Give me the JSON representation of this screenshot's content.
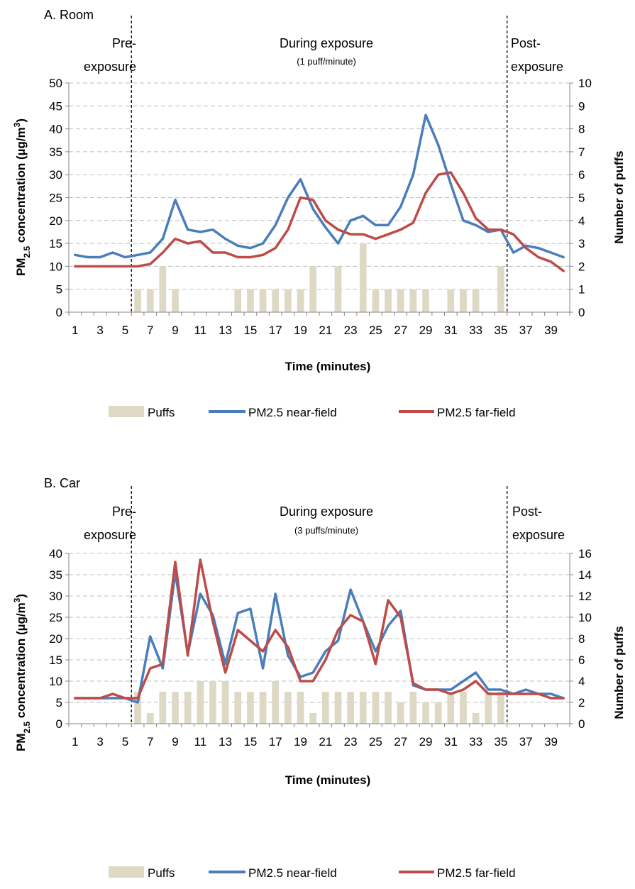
{
  "colors": {
    "puffs": "#ddd9c4",
    "near": "#4a7ebb",
    "far": "#be4b48"
  },
  "chart_data": [
    {
      "type": "bar+line",
      "title": "A. Room",
      "phases": {
        "pre": [
          "Pre-",
          "exposure"
        ],
        "during": "During exposure",
        "during_note": "(1 puff/minute)",
        "post": [
          "Post-",
          "exposure"
        ]
      },
      "xlabel": "Time (minutes)",
      "ylabel_left": {
        "main": "PM",
        "sub": "2.5",
        "mid": " concentration (µg/m",
        "sup": "3",
        "end": ")"
      },
      "ylabel_right": "Number of puffs",
      "ylim_left": [
        0,
        50
      ],
      "yticks_left": [
        0,
        5,
        10,
        15,
        20,
        25,
        30,
        35,
        40,
        45,
        50
      ],
      "ylim_right": [
        0,
        10
      ],
      "yticks_right": [
        0,
        1,
        2,
        3,
        4,
        5,
        6,
        7,
        8,
        9,
        10
      ],
      "x": [
        1,
        2,
        3,
        4,
        5,
        6,
        7,
        8,
        9,
        10,
        11,
        12,
        13,
        14,
        15,
        16,
        17,
        18,
        19,
        20,
        21,
        22,
        23,
        24,
        25,
        26,
        27,
        28,
        29,
        30,
        31,
        32,
        33,
        34,
        35,
        36,
        37,
        38,
        39,
        40
      ],
      "xtick_labels": [
        "1",
        "3",
        "5",
        "7",
        "9",
        "11",
        "13",
        "15",
        "17",
        "19",
        "21",
        "23",
        "25",
        "27",
        "29",
        "31",
        "33",
        "35",
        "37",
        "39"
      ],
      "phase_dividers_x": [
        5.5,
        35.5
      ],
      "grid": true,
      "legend_position": "bottom",
      "series": [
        {
          "name": "Puffs",
          "type": "bar",
          "axis": "right",
          "values": [
            0,
            0,
            0,
            0,
            0,
            1,
            1,
            2,
            1,
            0,
            0,
            0,
            0,
            1,
            1,
            1,
            1,
            1,
            1,
            2,
            0,
            2,
            0,
            3,
            1,
            1,
            1,
            1,
            1,
            0,
            1,
            1,
            1,
            0,
            2,
            0,
            0,
            0,
            0,
            0
          ]
        },
        {
          "name": "PM2.5 near-field",
          "type": "line",
          "axis": "left",
          "values": [
            12.5,
            12,
            12,
            13,
            12,
            12.5,
            13,
            16,
            24.5,
            18,
            17.5,
            18,
            16,
            14.5,
            14,
            15,
            19,
            25,
            29,
            22.5,
            18.5,
            15,
            20,
            21,
            19,
            19,
            23,
            30,
            43,
            36.5,
            28,
            20,
            19,
            17.5,
            18,
            13,
            14.5,
            14,
            13,
            12
          ]
        },
        {
          "name": "PM2.5 far-field",
          "type": "line",
          "axis": "left",
          "values": [
            10,
            10,
            10,
            10,
            10,
            10,
            10.5,
            13,
            16,
            15,
            15.5,
            13,
            13,
            12,
            12,
            12.5,
            14,
            18,
            25,
            24.5,
            20,
            18,
            17,
            17,
            16,
            17,
            18,
            19.5,
            26,
            30,
            30.5,
            26,
            20.5,
            18,
            18,
            17,
            14,
            12,
            11,
            9
          ]
        }
      ]
    },
    {
      "type": "bar+line",
      "title": "B. Car",
      "phases": {
        "pre": [
          "Pre-",
          "exposure"
        ],
        "during": "During exposure",
        "during_note": "(3 puffs/minute)",
        "post": [
          "Post-",
          "exposure"
        ]
      },
      "xlabel": "Time (minutes)",
      "ylabel_left": {
        "main": "PM",
        "sub": "2.5",
        "mid": " concentration (µg/m",
        "sup": "3",
        "end": ")"
      },
      "ylabel_right": "Number of puffs",
      "ylim_left": [
        0,
        40
      ],
      "yticks_left": [
        0,
        5,
        10,
        15,
        20,
        25,
        30,
        35,
        40
      ],
      "ylim_right": [
        0,
        16
      ],
      "yticks_right": [
        0,
        2,
        4,
        6,
        8,
        10,
        12,
        14,
        16
      ],
      "x": [
        1,
        2,
        3,
        4,
        5,
        6,
        7,
        8,
        9,
        10,
        11,
        12,
        13,
        14,
        15,
        16,
        17,
        18,
        19,
        20,
        21,
        22,
        23,
        24,
        25,
        26,
        27,
        28,
        29,
        30,
        31,
        32,
        33,
        34,
        35,
        36,
        37,
        38,
        39,
        40
      ],
      "xtick_labels": [
        "1",
        "3",
        "5",
        "7",
        "9",
        "11",
        "13",
        "15",
        "17",
        "19",
        "21",
        "23",
        "25",
        "27",
        "29",
        "31",
        "33",
        "35",
        "37",
        "39"
      ],
      "phase_dividers_x": [
        5.5,
        35.5
      ],
      "grid": true,
      "legend_position": "bottom",
      "series": [
        {
          "name": "Puffs",
          "type": "bar",
          "axis": "right",
          "values": [
            0,
            0,
            0,
            0,
            0,
            3,
            1,
            3,
            3,
            3,
            4,
            4,
            4,
            3,
            3,
            3,
            4,
            3,
            3,
            1,
            3,
            3,
            3,
            3,
            3,
            3,
            2,
            3,
            2,
            2,
            3,
            3,
            1,
            3,
            3,
            0,
            0,
            0,
            0,
            0
          ]
        },
        {
          "name": "PM2.5 near-field",
          "type": "line",
          "axis": "left",
          "values": [
            6,
            6,
            6,
            6,
            6,
            5,
            20.5,
            13,
            35.5,
            16.5,
            30.5,
            25.5,
            14,
            26,
            27,
            13,
            30.5,
            16,
            11,
            12,
            17,
            19.5,
            31.5,
            24,
            17,
            23,
            26.5,
            9,
            8,
            8,
            8,
            10,
            12,
            8,
            8,
            7,
            8,
            7,
            7,
            6
          ]
        },
        {
          "name": "PM2.5 far-field",
          "type": "line",
          "axis": "left",
          "values": [
            6,
            6,
            6,
            7,
            6,
            6,
            13,
            14,
            38,
            16,
            38.5,
            24,
            12,
            22,
            19.5,
            17,
            22,
            18,
            10,
            10,
            15,
            22,
            25.5,
            24,
            14,
            29,
            25,
            9.5,
            8,
            8,
            7,
            8,
            10,
            7,
            7,
            7,
            7,
            7,
            6,
            6
          ]
        }
      ]
    }
  ]
}
